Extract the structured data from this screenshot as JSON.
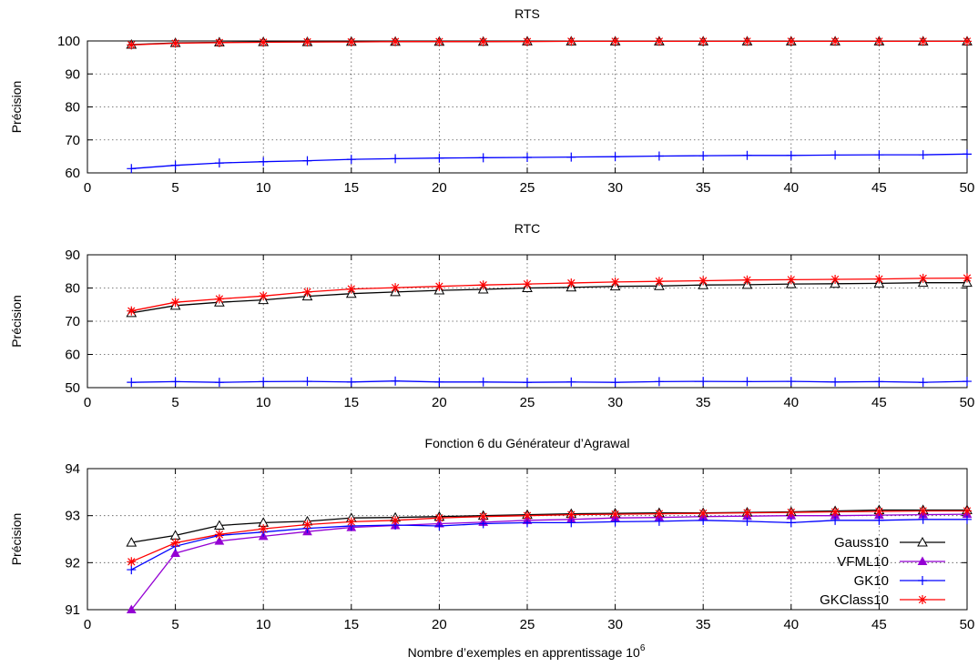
{
  "figure": {
    "xlabel_main": "Nombre d’exemples en apprentissage 10",
    "xlabel_sup": "6"
  },
  "legend": {
    "entries": [
      "Gauss10",
      "VFML10",
      "GK10",
      "GKClass10"
    ],
    "colors": [
      "#000000",
      "#9400d3",
      "#0000ff",
      "#ff0000"
    ],
    "markers": [
      "triangle-open",
      "triangle-filled",
      "plus",
      "star"
    ]
  },
  "chart_data": [
    {
      "type": "line",
      "title": "RTS",
      "ylabel": "Précision",
      "xlabel": "",
      "xlim": [
        0,
        50
      ],
      "ylim": [
        60,
        100
      ],
      "xticks": [
        "0",
        "5",
        "10",
        "15",
        "20",
        "25",
        "30",
        "35",
        "40",
        "45",
        "50"
      ],
      "yticks": [
        "60",
        "70",
        "80",
        "90",
        "100"
      ],
      "grid": true,
      "x": [
        2.5,
        5,
        7.5,
        10,
        12.5,
        15,
        17.5,
        20,
        22.5,
        25,
        27.5,
        30,
        32.5,
        35,
        37.5,
        40,
        42.5,
        45,
        47.5,
        50
      ],
      "series": [
        {
          "name": "Gauss10",
          "values": [
            98.9,
            99.4,
            99.6,
            99.7,
            99.7,
            99.8,
            99.8,
            99.8,
            99.8,
            99.9,
            99.9,
            99.9,
            99.9,
            99.9,
            99.9,
            99.9,
            99.9,
            99.9,
            99.9,
            99.9
          ]
        },
        {
          "name": "GK10",
          "values": [
            61.3,
            62.3,
            63.0,
            63.4,
            63.7,
            64.1,
            64.3,
            64.5,
            64.6,
            64.7,
            64.8,
            64.9,
            65.1,
            65.2,
            65.3,
            65.3,
            65.4,
            65.5,
            65.5,
            65.7
          ]
        },
        {
          "name": "GKClass10",
          "values": [
            98.8,
            99.3,
            99.5,
            99.6,
            99.7,
            99.7,
            99.8,
            99.8,
            99.8,
            99.8,
            99.9,
            99.9,
            99.9,
            99.9,
            99.9,
            99.9,
            99.9,
            99.9,
            99.9,
            99.9
          ]
        }
      ]
    },
    {
      "type": "line",
      "title": "RTC",
      "ylabel": "Précision",
      "xlabel": "",
      "xlim": [
        0,
        50
      ],
      "ylim": [
        50,
        90
      ],
      "xticks": [
        "0",
        "5",
        "10",
        "15",
        "20",
        "25",
        "30",
        "35",
        "40",
        "45",
        "50"
      ],
      "yticks": [
        "50",
        "60",
        "70",
        "80",
        "90"
      ],
      "grid": true,
      "x": [
        2.5,
        5,
        7.5,
        10,
        12.5,
        15,
        17.5,
        20,
        22.5,
        25,
        27.5,
        30,
        32.5,
        35,
        37.5,
        40,
        42.5,
        45,
        47.5,
        50
      ],
      "series": [
        {
          "name": "Gauss10",
          "values": [
            72.5,
            74.7,
            75.7,
            76.4,
            77.5,
            78.3,
            78.8,
            79.3,
            79.6,
            80.0,
            80.2,
            80.5,
            80.6,
            80.9,
            81.0,
            81.2,
            81.3,
            81.4,
            81.6,
            81.6
          ]
        },
        {
          "name": "GK10",
          "values": [
            51.6,
            51.8,
            51.6,
            51.8,
            51.9,
            51.7,
            52.0,
            51.7,
            51.7,
            51.6,
            51.7,
            51.6,
            51.8,
            51.9,
            51.8,
            51.9,
            51.7,
            51.8,
            51.6,
            51.9
          ]
        },
        {
          "name": "GKClass10",
          "values": [
            73.1,
            75.7,
            76.7,
            77.6,
            78.8,
            79.7,
            80.1,
            80.5,
            80.9,
            81.2,
            81.5,
            81.8,
            82.0,
            82.2,
            82.4,
            82.5,
            82.6,
            82.7,
            82.9,
            83.0
          ]
        }
      ]
    },
    {
      "type": "line",
      "title": "Fonction 6 du Générateur d’Agrawal",
      "ylabel": "Précision",
      "xlabel": "Nombre d’exemples en apprentissage 10^6",
      "xlim": [
        0,
        50
      ],
      "ylim": [
        91,
        94
      ],
      "xticks": [
        "0",
        "5",
        "10",
        "15",
        "20",
        "25",
        "30",
        "35",
        "40",
        "45",
        "50"
      ],
      "yticks": [
        "91",
        "92",
        "93",
        "94"
      ],
      "grid": true,
      "legend_position": "bottom-right",
      "x": [
        2.5,
        5,
        7.5,
        10,
        12.5,
        15,
        17.5,
        20,
        22.5,
        25,
        27.5,
        30,
        32.5,
        35,
        37.5,
        40,
        42.5,
        45,
        47.5,
        50
      ],
      "series": [
        {
          "name": "Gauss10",
          "values": [
            92.43,
            92.58,
            92.79,
            92.85,
            92.88,
            92.95,
            92.96,
            92.98,
            93.0,
            93.02,
            93.04,
            93.05,
            93.06,
            93.06,
            93.07,
            93.08,
            93.1,
            93.12,
            93.12,
            93.12
          ]
        },
        {
          "name": "VFML10",
          "values": [
            91.0,
            92.2,
            92.46,
            92.56,
            92.66,
            92.75,
            92.79,
            92.83,
            92.86,
            92.9,
            92.92,
            92.95,
            92.96,
            92.98,
            92.99,
            93.0,
            93.0,
            93.01,
            93.02,
            93.03
          ]
        },
        {
          "name": "GK10",
          "values": [
            91.85,
            92.35,
            92.58,
            92.65,
            92.73,
            92.78,
            92.8,
            92.78,
            92.83,
            92.85,
            92.85,
            92.87,
            92.88,
            92.9,
            92.88,
            92.85,
            92.9,
            92.9,
            92.92,
            92.92
          ]
        },
        {
          "name": "GKClass10",
          "values": [
            92.02,
            92.42,
            92.6,
            92.72,
            92.81,
            92.87,
            92.9,
            92.95,
            92.98,
            93.0,
            93.02,
            93.03,
            93.04,
            93.05,
            93.06,
            93.07,
            93.08,
            93.09,
            93.1,
            93.1
          ]
        }
      ]
    }
  ]
}
